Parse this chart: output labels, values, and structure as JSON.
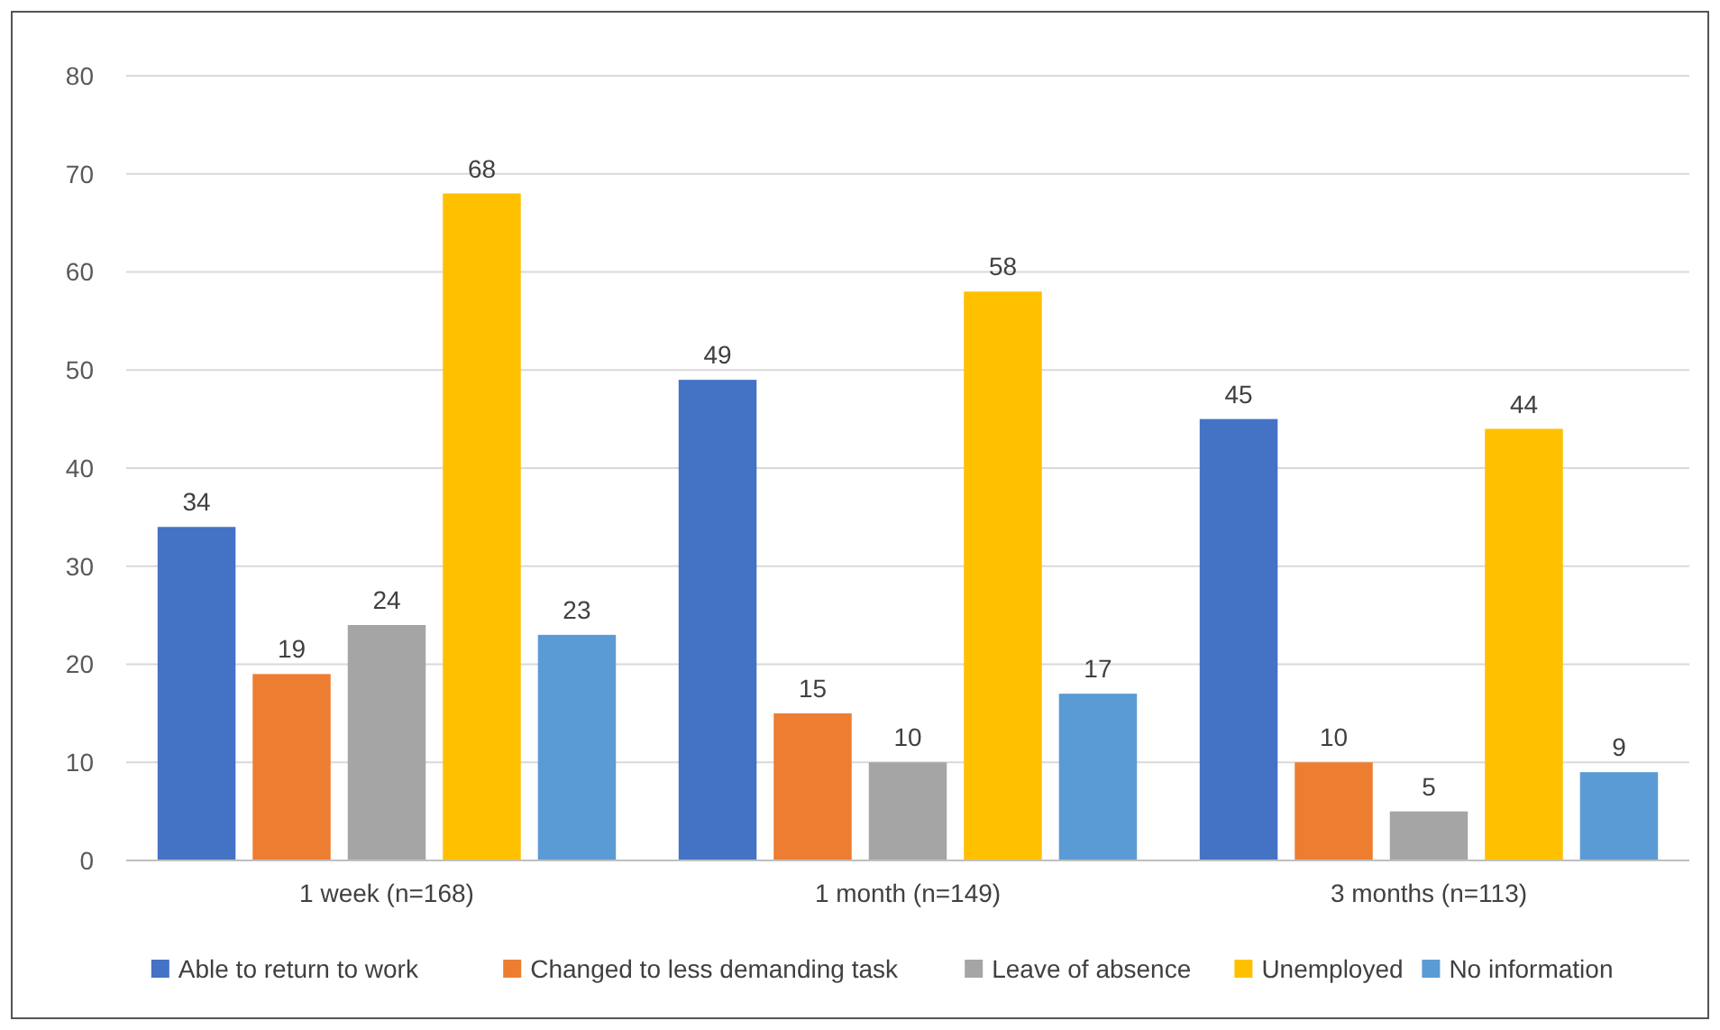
{
  "chart_data": {
    "type": "bar",
    "categories": [
      "1 week (n=168)",
      "1 month (n=149)",
      "3 months (n=113)"
    ],
    "series": [
      {
        "name": "Able to return to work",
        "color": "#4472c4",
        "values": [
          34,
          49,
          45
        ]
      },
      {
        "name": "Changed to less demanding task",
        "color": "#ed7d31",
        "values": [
          19,
          15,
          10
        ]
      },
      {
        "name": "Leave of absence",
        "color": "#a5a5a5",
        "values": [
          24,
          10,
          5
        ]
      },
      {
        "name": "Unemployed",
        "color": "#ffc000",
        "values": [
          68,
          58,
          44
        ]
      },
      {
        "name": "No information",
        "color": "#5b9bd5",
        "values": [
          23,
          17,
          9
        ]
      }
    ],
    "ylim": [
      0,
      80
    ],
    "yticks": [
      0,
      10,
      20,
      30,
      40,
      50,
      60,
      70,
      80
    ],
    "grid": "y",
    "legend": "bottom",
    "data_labels": true
  }
}
